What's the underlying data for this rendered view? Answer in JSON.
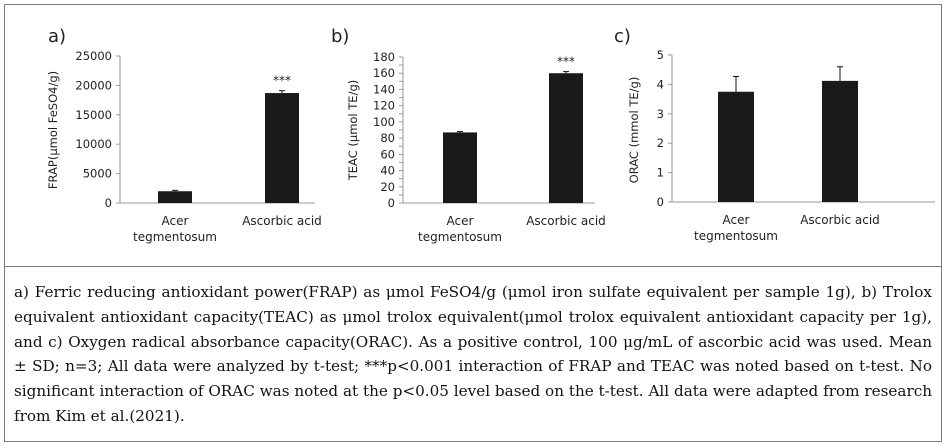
{
  "chart_data": [
    {
      "type": "bar",
      "panel_label": "a)",
      "ylabel": "FRAP(μmol FeSO4/g)",
      "categories": [
        "Acer tegmentosum",
        "Ascorbic acid"
      ],
      "category_lines": [
        [
          "Acer",
          "tegmentosum"
        ],
        [
          "Ascorbic acid"
        ]
      ],
      "values": [
        2000,
        18700
      ],
      "errors": [
        150,
        400
      ],
      "significance": [
        "",
        "***"
      ],
      "ylim": [
        0,
        25000
      ],
      "yticks": [
        0,
        5000,
        10000,
        15000,
        20000,
        25000
      ],
      "ytick_labels": [
        "0",
        "5000",
        "10000",
        "15000",
        "20000",
        "25000"
      ],
      "bar_color": "#1a1a1a",
      "grid": false
    },
    {
      "type": "bar",
      "panel_label": "b)",
      "ylabel": "TEAC (μmol TE/g)",
      "categories": [
        "Acer tegmentosum",
        "Ascorbic acid"
      ],
      "category_lines": [
        [
          "Acer",
          "tegmentosum"
        ],
        [
          "Ascorbic acid"
        ]
      ],
      "values": [
        87,
        160
      ],
      "errors": [
        1,
        2
      ],
      "significance": [
        "",
        "***"
      ],
      "ylim": [
        0,
        180
      ],
      "yticks": [
        0,
        10,
        20,
        30,
        40,
        50,
        60,
        70,
        80,
        90,
        100,
        110,
        120,
        130,
        140,
        150,
        160,
        170,
        180
      ],
      "ytick_labels": [
        "0",
        "",
        "20",
        "",
        "40",
        "",
        "60",
        "",
        "80",
        "",
        "100",
        "",
        "120",
        "",
        "140",
        "",
        "160",
        "",
        "180"
      ],
      "bar_color": "#1a1a1a",
      "grid": false
    },
    {
      "type": "bar",
      "panel_label": "c)",
      "ylabel": "ORAC (mmol TE/g)",
      "categories": [
        "Acer tegmentosum",
        "Ascorbic acid"
      ],
      "category_lines": [
        [
          "Acer",
          "tegmentosum"
        ],
        [
          "Ascorbic acid"
        ]
      ],
      "values": [
        3.75,
        4.12
      ],
      "errors": [
        0.52,
        0.48
      ],
      "significance": [
        "",
        ""
      ],
      "ylim": [
        0,
        5
      ],
      "yticks": [
        0,
        1,
        2,
        3,
        4,
        5
      ],
      "ytick_labels": [
        "0",
        "1",
        "2",
        "3",
        "4",
        "5"
      ],
      "bar_color": "#1a1a1a",
      "grid": false
    }
  ],
  "caption": "a) Ferric reducing antioxidant power(FRAP) as μmol FeSO4/g (μmol iron sulfate equivalent per sample 1g), b) Trolox equivalent antioxidant capacity(TEAC) as μmol trolox equivalent(μmol trolox equivalent antioxidant capacity per 1g), and c) Oxygen radical absorbance capacity(ORAC). As a positive control, 100 μg/mL of ascorbic acid was used. Mean ± SD; n=3; All data were analyzed by t-test; ***p<0.001 interaction of FRAP and TEAC was noted based on t-test. No significant interaction of ORAC was noted at the p<0.05 level based on the t-test. All data were adapted from research from Kim et al.(2021)."
}
